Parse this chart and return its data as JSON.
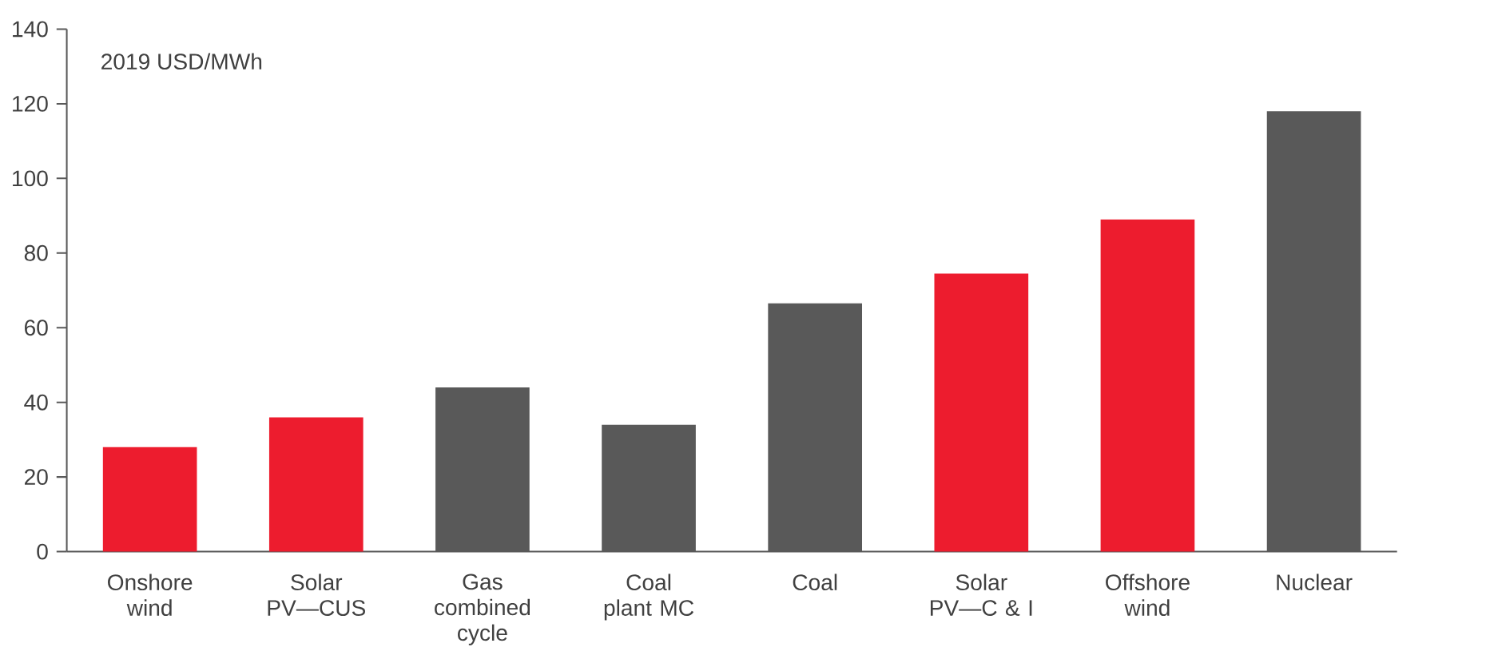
{
  "chart_data": {
    "type": "bar",
    "categories": [
      "Onshore wind",
      "Solar PV—CUS",
      "Gas combined cycle",
      "Coal plant MC",
      "Coal",
      "Solar PV—C & I",
      "Offshore wind",
      "Nuclear"
    ],
    "values": [
      28,
      36,
      44,
      34,
      66.5,
      74.5,
      89,
      118
    ],
    "colors": [
      "#ed1c2e",
      "#ed1c2e",
      "#595959",
      "#595959",
      "#595959",
      "#ed1c2e",
      "#ed1c2e",
      "#595959"
    ],
    "ylim": [
      0,
      140
    ],
    "yticks": [
      0,
      20,
      40,
      60,
      80,
      100,
      120,
      140
    ],
    "annotations": [
      "2019 USD/MWh"
    ]
  }
}
